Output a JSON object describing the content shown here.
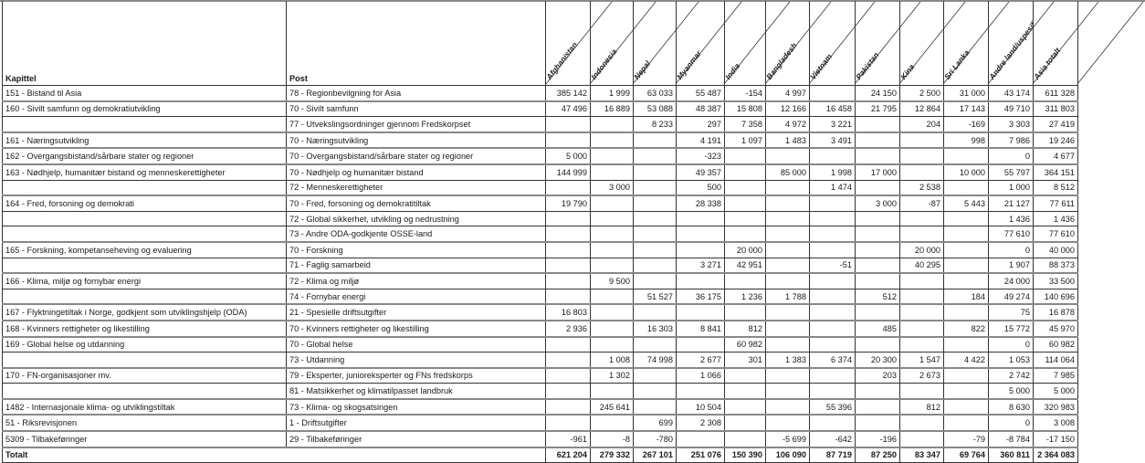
{
  "table": {
    "headers": {
      "kapittel": "Kapittel",
      "post": "Post",
      "countries": [
        "Afghanistan",
        "Indonesia",
        "Nepal",
        "Myanmar",
        "India",
        "Bangladesh",
        "Vietnam",
        "Pakistan",
        "Kina",
        "Sri Lanka",
        "Andre land/uspesifisert",
        "Asia totalt"
      ]
    },
    "rows": [
      {
        "kapittel": "151 - Bistand til Asia",
        "post": "78 - Regionbevilgning for Asia",
        "values": [
          "385 142",
          "1 999",
          "63 033",
          "55 487",
          "-154",
          "4 997",
          "",
          "24 150",
          "2 500",
          "31 000",
          "43 174",
          "611 328"
        ]
      },
      {
        "kapittel": "160 - Sivilt samfunn og demokratiutvikling",
        "post": "70 - Sivilt samfunn",
        "values": [
          "47 496",
          "16 889",
          "53 088",
          "48 387",
          "15 808",
          "12 166",
          "16 458",
          "21 795",
          "12 864",
          "17 143",
          "49 710",
          "311 803"
        ]
      },
      {
        "kapittel": "",
        "post": "77 - Utvekslingsordninger gjennom Fredskorpset",
        "values": [
          "",
          "",
          "8 233",
          "297",
          "7 358",
          "4 972",
          "3 221",
          "",
          "204",
          "-169",
          "3 303",
          "27 419"
        ]
      },
      {
        "kapittel": "161 - Næringsutvikling",
        "post": "70 - Næringsutvikling",
        "values": [
          "",
          "",
          "",
          "4 191",
          "1 097",
          "1 483",
          "3 491",
          "",
          "",
          "998",
          "7 986",
          "19 246"
        ]
      },
      {
        "kapittel": "162 - Overgangsbistand/sårbare stater og regioner",
        "post": "70 - Overgangsbistand/sårbare stater og regioner",
        "values": [
          "5 000",
          "",
          "",
          "-323",
          "",
          "",
          "",
          "",
          "",
          "",
          "0",
          "4 677"
        ]
      },
      {
        "kapittel": "163 - Nødhjelp, humanitær bistand og menneskerettigheter",
        "post": "70 - Nødhjelp og humanitær bistand",
        "values": [
          "144 999",
          "",
          "",
          "49 357",
          "",
          "85 000",
          "1 998",
          "17 000",
          "",
          "10 000",
          "55 797",
          "364 151"
        ]
      },
      {
        "kapittel": "",
        "post": "72 - Menneskerettigheter",
        "values": [
          "",
          "3 000",
          "",
          "500",
          "",
          "",
          "1 474",
          "",
          "2 538",
          "",
          "1 000",
          "8 512"
        ]
      },
      {
        "kapittel": "164 - Fred, forsoning og demokrati",
        "post": "70 - Fred, forsoning og demokratitiltak",
        "values": [
          "19 790",
          "",
          "",
          "28 338",
          "",
          "",
          "",
          "3 000",
          "-87",
          "5 443",
          "21 127",
          "77 611"
        ]
      },
      {
        "kapittel": "",
        "post": "72 - Global sikkerhet, utvikling og nedrustning",
        "values": [
          "",
          "",
          "",
          "",
          "",
          "",
          "",
          "",
          "",
          "",
          "1 436",
          "1 436"
        ]
      },
      {
        "kapittel": "",
        "post": "73 - Andre ODA-godkjente OSSE-land",
        "values": [
          "",
          "",
          "",
          "",
          "",
          "",
          "",
          "",
          "",
          "",
          "77 610",
          "77 610"
        ]
      },
      {
        "kapittel": "165 - Forskning, kompetanseheving og evaluering",
        "post": "70 - Forskning",
        "values": [
          "",
          "",
          "",
          "",
          "20 000",
          "",
          "",
          "",
          "20 000",
          "",
          "0",
          "40 000"
        ]
      },
      {
        "kapittel": "",
        "post": "71 - Faglig samarbeid",
        "values": [
          "",
          "",
          "",
          "3 271",
          "42 951",
          "",
          "-51",
          "",
          "40 295",
          "",
          "1 907",
          "88 373"
        ]
      },
      {
        "kapittel": "166 - Klima, miljø og fornybar energi",
        "post": "72 - Klima og miljø",
        "values": [
          "",
          "9 500",
          "",
          "",
          "",
          "",
          "",
          "",
          "",
          "",
          "24 000",
          "33 500"
        ]
      },
      {
        "kapittel": "",
        "post": "74 - Fornybar energi",
        "values": [
          "",
          "",
          "51 527",
          "36 175",
          "1 236",
          "1 788",
          "",
          "512",
          "",
          "184",
          "49 274",
          "140 696"
        ]
      },
      {
        "kapittel": "167 - Flyktningetiltak i Norge, godkjent som utviklingshjelp (ODA)",
        "post": "21 - Spesielle driftsutgifter",
        "values": [
          "16 803",
          "",
          "",
          "",
          "",
          "",
          "",
          "",
          "",
          "",
          "75",
          "16 878"
        ]
      },
      {
        "kapittel": "168 - Kvinners rettigheter og likestilling",
        "post": "70 - Kvinners rettigheter og likestilling",
        "values": [
          "2 936",
          "",
          "16 303",
          "8 841",
          "812",
          "",
          "",
          "485",
          "",
          "822",
          "15 772",
          "45 970"
        ]
      },
      {
        "kapittel": "169 - Global helse og utdanning",
        "post": "70 - Global helse",
        "values": [
          "",
          "",
          "",
          "",
          "60 982",
          "",
          "",
          "",
          "",
          "",
          "0",
          "60 982"
        ]
      },
      {
        "kapittel": "",
        "post": "73 - Utdanning",
        "values": [
          "",
          "1 008",
          "74 998",
          "2 677",
          "301",
          "1 383",
          "6 374",
          "20 300",
          "1 547",
          "4 422",
          "1 053",
          "114 064"
        ]
      },
      {
        "kapittel": "170 - FN-organisasjoner mv.",
        "post": "79 - Eksperter, junioreksperter og FNs fredskorps",
        "values": [
          "",
          "1 302",
          "",
          "1 066",
          "",
          "",
          "",
          "203",
          "2 673",
          "",
          "2 742",
          "7 985"
        ]
      },
      {
        "kapittel": "",
        "post": "81 - Matsikkerhet og klimatilpasset landbruk",
        "values": [
          "",
          "",
          "",
          "",
          "",
          "",
          "",
          "",
          "",
          "",
          "5 000",
          "5 000"
        ]
      },
      {
        "kapittel": "1482 - Internasjonale klima- og utviklingstiltak",
        "post": "73 - Klima- og skogsatsingen",
        "values": [
          "",
          "245 641",
          "",
          "10 504",
          "",
          "",
          "55 396",
          "",
          "812",
          "",
          "8 630",
          "320 983"
        ]
      },
      {
        "kapittel": "51 - Riksrevisjonen",
        "post": "1 - Driftsutgifter",
        "values": [
          "",
          "",
          "699",
          "2 308",
          "",
          "",
          "",
          "",
          "",
          "",
          "0",
          "3 008"
        ]
      },
      {
        "kapittel": "5309 - Tilbakeføringer",
        "post": "29 - Tilbakeføringer",
        "values": [
          "-961",
          "-8",
          "-780",
          "",
          "",
          "-5 699",
          "-642",
          "-196",
          "",
          "-79",
          "-8 784",
          "-17 150"
        ]
      }
    ],
    "total": {
      "label": "Totalt",
      "values": [
        "621 204",
        "279 332",
        "267 101",
        "251 076",
        "150 390",
        "106 090",
        "87 719",
        "87 250",
        "83 347",
        "69 764",
        "360 811",
        "2 364 083"
      ]
    }
  }
}
